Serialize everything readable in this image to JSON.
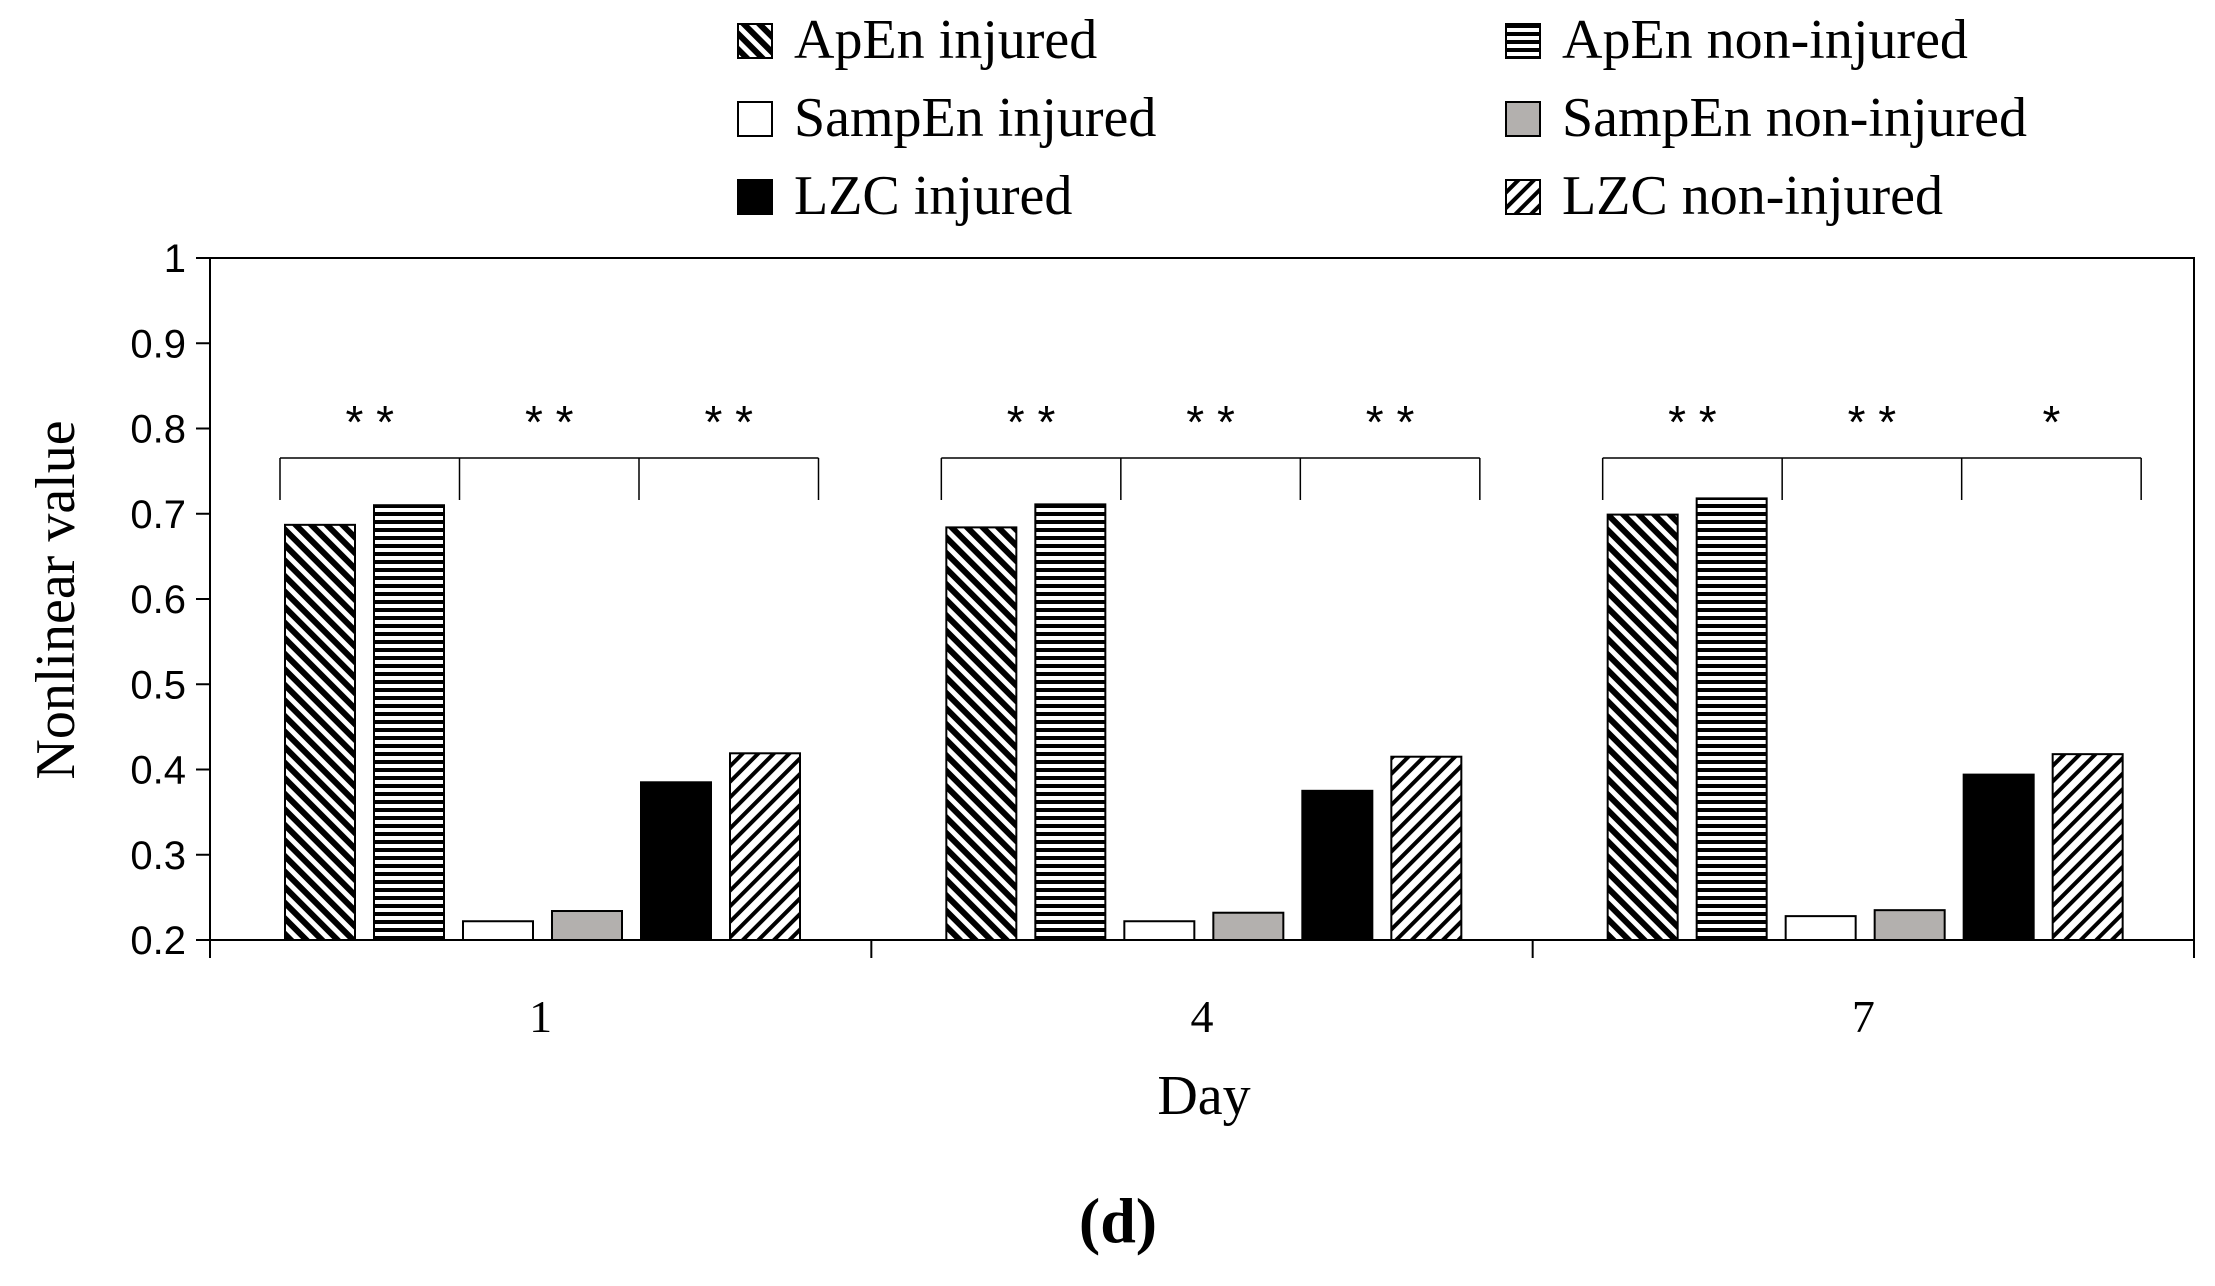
{
  "chart_data": {
    "type": "bar",
    "categories": [
      "1",
      "4",
      "7"
    ],
    "xlabel": "Day",
    "ylabel": "Nonlinear value",
    "ylim": [
      0.2,
      1.0
    ],
    "yticks": [
      "0.2",
      "0.3",
      "0.4",
      "0.5",
      "0.6",
      "0.7",
      "0.8",
      "0.9",
      "1"
    ],
    "panel_label": "(d)",
    "legend_position": "top",
    "series": [
      {
        "name": "ApEn injured",
        "pattern": "diag-back",
        "values": [
          0.687,
          0.684,
          0.699
        ]
      },
      {
        "name": "ApEn non-injured",
        "pattern": "horizontal",
        "values": [
          0.71,
          0.711,
          0.718
        ]
      },
      {
        "name": "SampEn injured",
        "pattern": "white",
        "values": [
          0.222,
          0.222,
          0.228
        ]
      },
      {
        "name": "SampEn non-injured",
        "pattern": "gray",
        "values": [
          0.234,
          0.232,
          0.235
        ]
      },
      {
        "name": "LZC injured",
        "pattern": "black",
        "values": [
          0.385,
          0.375,
          0.394
        ]
      },
      {
        "name": "LZC non-injured",
        "pattern": "diag-fwd",
        "values": [
          0.419,
          0.415,
          0.418
        ]
      }
    ],
    "significance": [
      [
        "* *",
        "* *",
        "* *"
      ],
      [
        "* *",
        "* *",
        "* *"
      ],
      [
        "* *",
        "* *",
        "*"
      ]
    ],
    "colors": {
      "gray": "#b3b0ae",
      "black": "#000000",
      "white": "#ffffff"
    }
  }
}
